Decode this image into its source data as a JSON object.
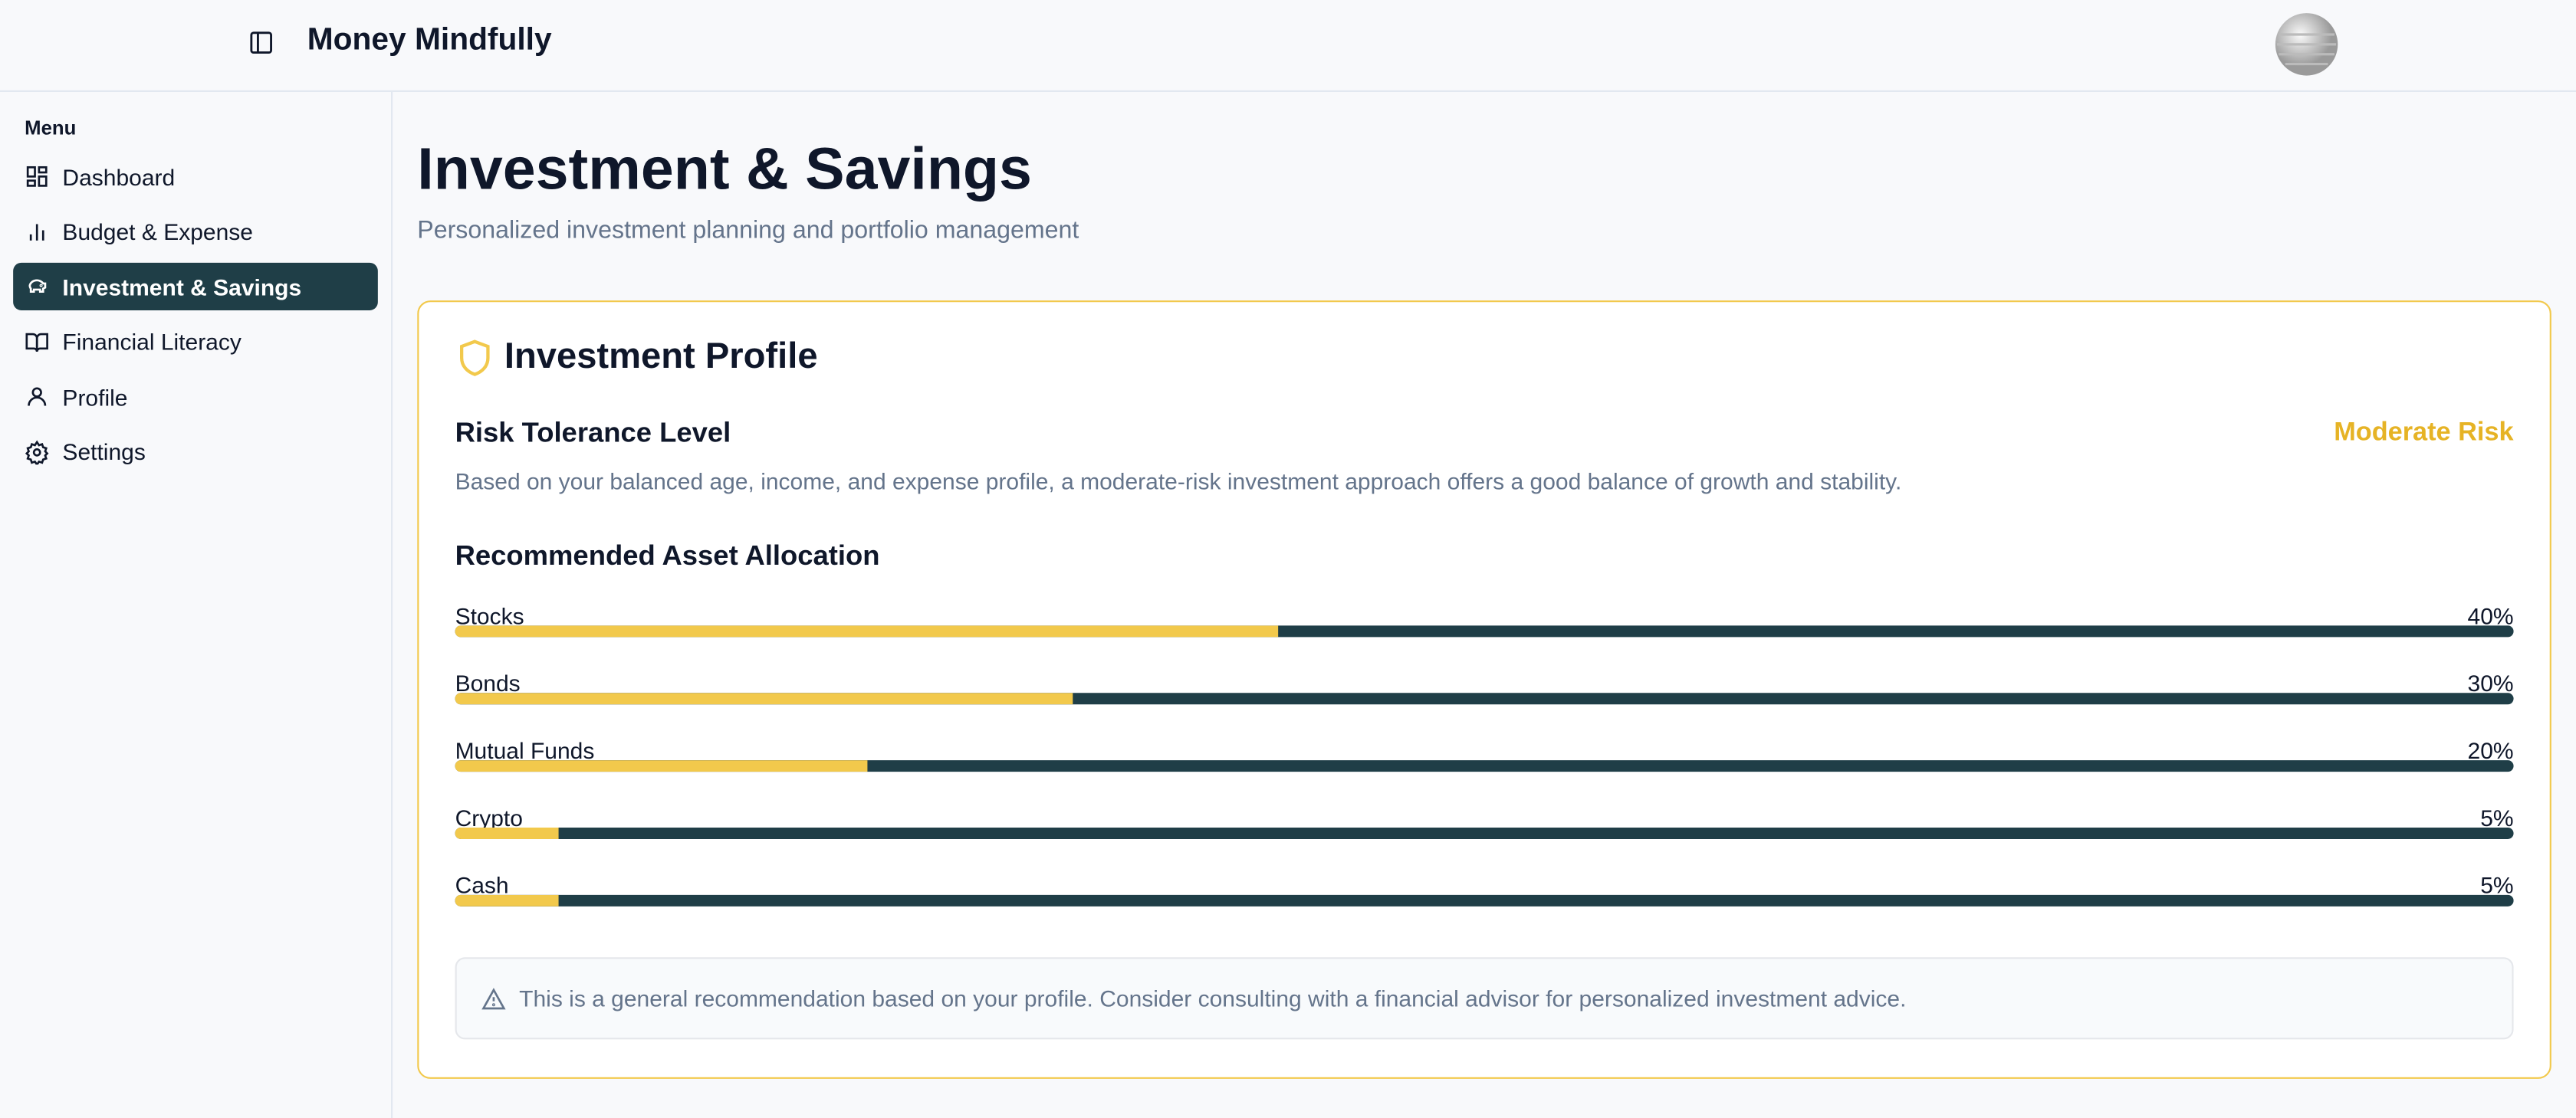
{
  "header": {
    "app_name": "Money Mindfully"
  },
  "sidebar": {
    "section_label": "Menu",
    "items": [
      "Dashboard",
      "Budget & Expense",
      "Investment & Savings",
      "Financial Literacy",
      "Profile",
      "Settings"
    ],
    "active_index": 2
  },
  "page": {
    "title": "Investment & Savings",
    "subtitle": "Personalized investment planning and portfolio management"
  },
  "profile_card": {
    "title": "Investment Profile",
    "risk_heading": "Risk Tolerance Level",
    "risk_level": "Moderate Risk",
    "risk_description": "Based on your balanced age, income, and expense profile, a moderate-risk investment approach offers a good balance of growth and stability.",
    "allocation_heading": "Recommended Asset Allocation",
    "allocation": [
      {
        "name": "Stocks",
        "value": 40,
        "label": "40%"
      },
      {
        "name": "Bonds",
        "value": 30,
        "label": "30%"
      },
      {
        "name": "Mutual Funds",
        "value": 20,
        "label": "20%"
      },
      {
        "name": "Crypto",
        "value": 5,
        "label": "5%"
      },
      {
        "name": "Cash",
        "value": 5,
        "label": "5%"
      }
    ],
    "note": "This is a general recommendation based on your profile. Consider consulting with a financial advisor for personalized investment advice."
  }
}
